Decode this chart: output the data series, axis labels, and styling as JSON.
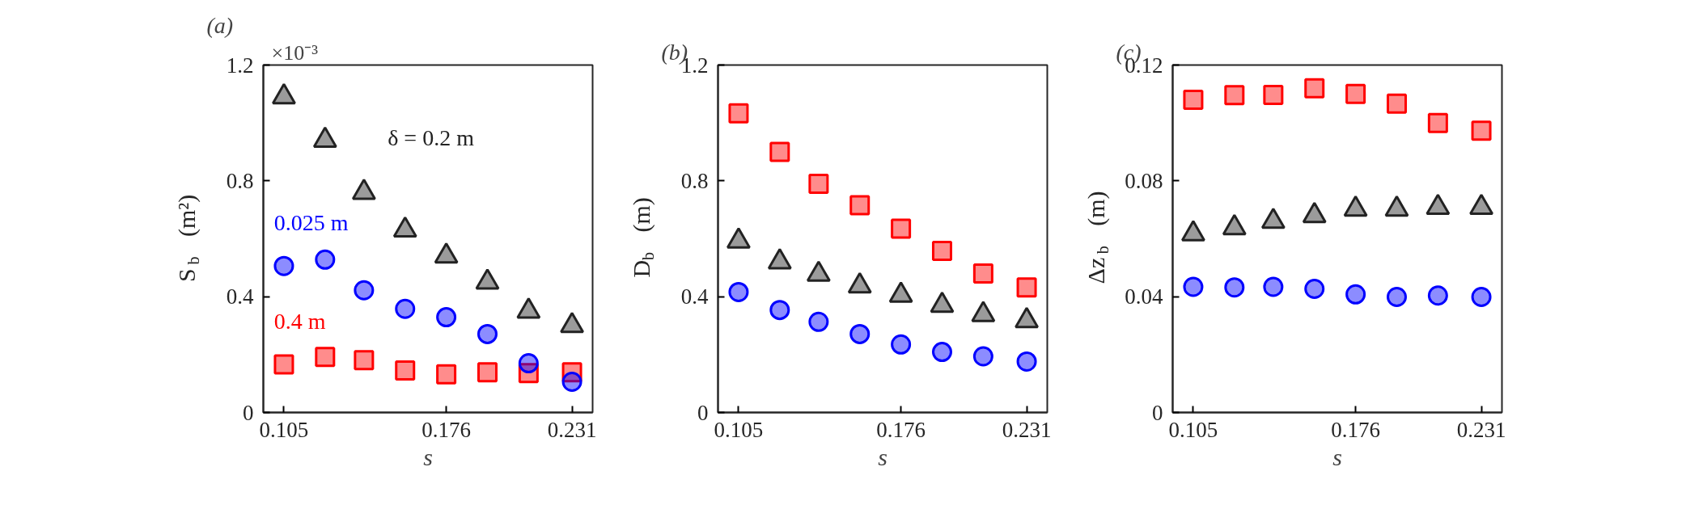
{
  "chart_data": [
    {
      "type": "scatter",
      "title": "(a)",
      "xlabel": "s",
      "ylabel": "S$_{b}$ (m²)",
      "annotations": [
        "×10⁻³"
      ],
      "xlim": [
        0.096,
        0.24
      ],
      "xticks": [
        0.105,
        0.176,
        0.231
      ],
      "ylim": [
        0,
        1.2
      ],
      "yticks": [
        0,
        0.4,
        0.8,
        1.2
      ],
      "grid": false,
      "x": [
        0.105,
        0.123,
        0.14,
        0.158,
        0.176,
        0.194,
        0.212,
        0.231
      ],
      "series": [
        {
          "name": "δ = 0.2 m",
          "color": "#222222",
          "marker": "triangle",
          "values": [
            1.09,
            0.94,
            0.76,
            0.63,
            0.54,
            0.45,
            0.35,
            0.3
          ]
        },
        {
          "name": "0.025 m",
          "color": "#0000ff",
          "marker": "circle",
          "values": [
            0.506,
            0.528,
            0.422,
            0.358,
            0.329,
            0.271,
            0.17,
            0.106
          ]
        },
        {
          "name": "0.4 m",
          "color": "#ff0000",
          "marker": "square",
          "values": [
            0.166,
            0.192,
            0.181,
            0.145,
            0.132,
            0.139,
            0.136,
            0.139
          ]
        }
      ]
    },
    {
      "type": "scatter",
      "title": "(b)",
      "xlabel": "s",
      "ylabel": "D$_{b}$ (m)",
      "xlim": [
        0.096,
        0.24
      ],
      "xticks": [
        0.105,
        0.176,
        0.231
      ],
      "ylim": [
        0,
        1.2
      ],
      "yticks": [
        0,
        0.4,
        0.8,
        1.2
      ],
      "grid": false,
      "x": [
        0.105,
        0.123,
        0.14,
        0.158,
        0.176,
        0.194,
        0.212,
        0.231
      ],
      "series": [
        {
          "color": "#222222",
          "marker": "triangle",
          "values": [
            0.592,
            0.52,
            0.477,
            0.437,
            0.405,
            0.37,
            0.338,
            0.317
          ]
        },
        {
          "color": "#0000ff",
          "marker": "circle",
          "values": [
            0.416,
            0.354,
            0.313,
            0.271,
            0.235,
            0.209,
            0.194,
            0.176
          ]
        },
        {
          "color": "#ff0000",
          "marker": "square",
          "values": [
            1.033,
            0.9,
            0.79,
            0.716,
            0.635,
            0.558,
            0.48,
            0.432
          ]
        }
      ]
    },
    {
      "type": "scatter",
      "title": "(c)",
      "xlabel": "s",
      "ylabel": "Δz$_{b}$ (m)",
      "xlim": [
        0.096,
        0.24
      ],
      "xticks": [
        0.105,
        0.176,
        0.231
      ],
      "ylim": [
        0,
        0.12
      ],
      "yticks": [
        0,
        0.04,
        0.08,
        0.12
      ],
      "grid": false,
      "x": [
        0.105,
        0.123,
        0.14,
        0.158,
        0.176,
        0.194,
        0.212,
        0.231
      ],
      "series": [
        {
          "color": "#222222",
          "marker": "triangle",
          "values": [
            0.0617,
            0.0638,
            0.066,
            0.068,
            0.0702,
            0.0702,
            0.0708,
            0.0708
          ]
        },
        {
          "color": "#0000ff",
          "marker": "circle",
          "values": [
            0.0434,
            0.0432,
            0.0434,
            0.0427,
            0.0408,
            0.0399,
            0.0404,
            0.0399
          ]
        },
        {
          "color": "#ff0000",
          "marker": "square",
          "values": [
            0.108,
            0.1096,
            0.1097,
            0.112,
            0.11,
            0.1067,
            0.1,
            0.0973
          ]
        }
      ]
    }
  ]
}
